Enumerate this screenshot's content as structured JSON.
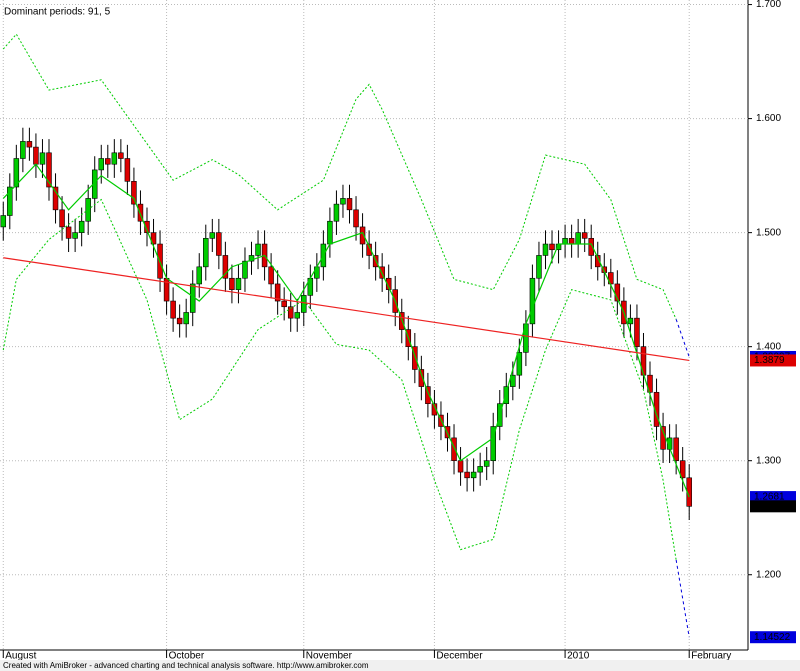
{
  "chart_data": {
    "type": "candlestick",
    "title": "Dominant periods: 91, 5",
    "footer": "Created with AmiBroker - advanced charting and technical analysis software. http://www.amibroker.com",
    "up_color": "#00cc00",
    "down_color": "#dd0000",
    "open": [
      1.505,
      1.515,
      1.54,
      1.565,
      1.58,
      1.575,
      1.56,
      1.57,
      1.54,
      1.52,
      1.505,
      1.495,
      1.5,
      1.51,
      1.53,
      1.555,
      1.565,
      1.56,
      1.57,
      1.565,
      1.545,
      1.525,
      1.51,
      1.5,
      1.49,
      1.46,
      1.44,
      1.425,
      1.42,
      1.43,
      1.455,
      1.47,
      1.495,
      1.5,
      1.48,
      1.46,
      1.45,
      1.46,
      1.475,
      1.48,
      1.49,
      1.47,
      1.455,
      1.44,
      1.435,
      1.425,
      1.43,
      1.445,
      1.46,
      1.47,
      1.49,
      1.51,
      1.525,
      1.53,
      1.52,
      1.505,
      1.49,
      1.48,
      1.47,
      1.46,
      1.45,
      1.43,
      1.415,
      1.4,
      1.38,
      1.365,
      1.35,
      1.34,
      1.33,
      1.32,
      1.3,
      1.29,
      1.285,
      1.29,
      1.295,
      1.3,
      1.33,
      1.35,
      1.365,
      1.375,
      1.395,
      1.42,
      1.46,
      1.48,
      1.49,
      1.485,
      1.49,
      1.495,
      1.49,
      1.5,
      1.495,
      1.48,
      1.47,
      1.465,
      1.455,
      1.44,
      1.42,
      1.425,
      1.4,
      1.375,
      1.36,
      1.33,
      1.31,
      1.32,
      1.3,
      1.285
    ],
    "high": [
      1.527,
      1.552,
      1.577,
      1.592,
      1.592,
      1.587,
      1.582,
      1.582,
      1.552,
      1.532,
      1.517,
      1.512,
      1.522,
      1.542,
      1.567,
      1.577,
      1.577,
      1.582,
      1.582,
      1.577,
      1.557,
      1.537,
      1.522,
      1.512,
      1.502,
      1.472,
      1.452,
      1.437,
      1.442,
      1.467,
      1.482,
      1.507,
      1.512,
      1.512,
      1.492,
      1.472,
      1.472,
      1.487,
      1.492,
      1.502,
      1.502,
      1.482,
      1.467,
      1.452,
      1.447,
      1.442,
      1.457,
      1.472,
      1.482,
      1.502,
      1.522,
      1.537,
      1.542,
      1.542,
      1.532,
      1.517,
      1.502,
      1.492,
      1.482,
      1.472,
      1.462,
      1.442,
      1.427,
      1.412,
      1.392,
      1.377,
      1.362,
      1.352,
      1.342,
      1.332,
      1.312,
      1.302,
      1.302,
      1.307,
      1.312,
      1.342,
      1.362,
      1.377,
      1.387,
      1.407,
      1.432,
      1.472,
      1.492,
      1.502,
      1.502,
      1.502,
      1.507,
      1.507,
      1.512,
      1.512,
      1.507,
      1.492,
      1.482,
      1.477,
      1.467,
      1.452,
      1.437,
      1.437,
      1.412,
      1.387,
      1.372,
      1.342,
      1.332,
      1.332,
      1.312,
      1.297
    ],
    "low": [
      1.493,
      1.503,
      1.528,
      1.553,
      1.563,
      1.548,
      1.548,
      1.528,
      1.508,
      1.493,
      1.483,
      1.483,
      1.488,
      1.498,
      1.518,
      1.543,
      1.548,
      1.548,
      1.553,
      1.533,
      1.513,
      1.498,
      1.488,
      1.478,
      1.448,
      1.428,
      1.413,
      1.408,
      1.408,
      1.418,
      1.443,
      1.458,
      1.483,
      1.468,
      1.448,
      1.438,
      1.438,
      1.448,
      1.463,
      1.468,
      1.458,
      1.443,
      1.428,
      1.423,
      1.413,
      1.413,
      1.418,
      1.433,
      1.448,
      1.458,
      1.478,
      1.498,
      1.513,
      1.508,
      1.493,
      1.478,
      1.468,
      1.458,
      1.448,
      1.438,
      1.418,
      1.403,
      1.388,
      1.368,
      1.353,
      1.338,
      1.328,
      1.318,
      1.308,
      1.288,
      1.278,
      1.273,
      1.273,
      1.278,
      1.283,
      1.288,
      1.318,
      1.338,
      1.353,
      1.363,
      1.383,
      1.408,
      1.448,
      1.468,
      1.473,
      1.473,
      1.478,
      1.478,
      1.478,
      1.483,
      1.468,
      1.458,
      1.453,
      1.443,
      1.428,
      1.408,
      1.408,
      1.388,
      1.363,
      1.348,
      1.318,
      1.298,
      1.298,
      1.288,
      1.273,
      1.248
    ],
    "close": [
      1.515,
      1.54,
      1.565,
      1.58,
      1.575,
      1.56,
      1.57,
      1.54,
      1.52,
      1.505,
      1.495,
      1.5,
      1.51,
      1.53,
      1.555,
      1.565,
      1.56,
      1.57,
      1.565,
      1.545,
      1.525,
      1.51,
      1.5,
      1.49,
      1.46,
      1.44,
      1.425,
      1.42,
      1.43,
      1.455,
      1.47,
      1.495,
      1.5,
      1.48,
      1.46,
      1.45,
      1.46,
      1.475,
      1.48,
      1.49,
      1.47,
      1.455,
      1.44,
      1.435,
      1.425,
      1.43,
      1.445,
      1.46,
      1.47,
      1.49,
      1.51,
      1.525,
      1.53,
      1.52,
      1.505,
      1.49,
      1.48,
      1.47,
      1.46,
      1.45,
      1.43,
      1.415,
      1.4,
      1.38,
      1.365,
      1.35,
      1.34,
      1.33,
      1.32,
      1.3,
      1.29,
      1.285,
      1.29,
      1.295,
      1.3,
      1.33,
      1.35,
      1.365,
      1.375,
      1.395,
      1.42,
      1.46,
      1.48,
      1.49,
      1.485,
      1.49,
      1.495,
      1.49,
      1.5,
      1.495,
      1.48,
      1.47,
      1.465,
      1.455,
      1.44,
      1.42,
      1.425,
      1.4,
      1.375,
      1.36,
      1.33,
      1.31,
      1.32,
      1.3,
      1.285,
      1.26
    ],
    "close_box_color": "#000000",
    "series": [
      {
        "color": "#00cc00",
        "style": "solid",
        "x": [
          0,
          5,
          10,
          15,
          20,
          25,
          30,
          35,
          40,
          45,
          50,
          55,
          60,
          65,
          70,
          75,
          80,
          85,
          90,
          95,
          100,
          105
        ],
        "values": [
          1.53,
          1.56,
          1.52,
          1.55,
          1.53,
          1.46,
          1.44,
          1.47,
          1.48,
          1.44,
          1.49,
          1.5,
          1.44,
          1.36,
          1.3,
          1.32,
          1.42,
          1.49,
          1.49,
          1.43,
          1.34,
          1.2681
        ],
        "box_color": "#0000dd"
      },
      {
        "color": "#00cc00",
        "style": "dotted",
        "x": [
          0,
          2,
          7,
          15,
          26,
          32,
          36,
          42,
          49,
          54,
          56,
          58,
          64,
          69,
          75,
          79,
          83,
          89,
          93,
          97,
          101,
          103
        ],
        "values": [
          1.661,
          1.674,
          1.625,
          1.634,
          1.546,
          1.564,
          1.551,
          1.52,
          1.546,
          1.617,
          1.63,
          1.608,
          1.529,
          1.459,
          1.45,
          1.494,
          1.568,
          1.56,
          1.529,
          1.459,
          1.45,
          1.424
        ]
      },
      {
        "color": "#00cc00",
        "style": "dotted",
        "x": [
          0,
          2,
          7,
          15,
          22,
          27,
          32,
          39,
          46,
          51,
          56,
          61,
          66,
          70,
          75,
          79,
          83,
          87,
          93,
          98,
          101,
          103
        ],
        "values": [
          1.397,
          1.459,
          1.494,
          1.529,
          1.441,
          1.336,
          1.354,
          1.415,
          1.441,
          1.402,
          1.397,
          1.371,
          1.283,
          1.222,
          1.231,
          1.327,
          1.397,
          1.45,
          1.441,
          1.362,
          1.283,
          1.213
        ]
      },
      {
        "color": "#0000dd",
        "style": "dashed",
        "x": [
          103,
          105
        ],
        "values": [
          1.424,
          1.39097
        ],
        "box_color": "#0000dd"
      },
      {
        "color": "#0000dd",
        "style": "dashed",
        "x": [
          103,
          105
        ],
        "values": [
          1.213,
          1.14522
        ],
        "box_color": "#0000dd"
      },
      {
        "color": "#ee2222",
        "style": "solid",
        "x": [
          0,
          105
        ],
        "values": [
          1.478,
          1.3879
        ],
        "box_color": "#dd0000"
      }
    ],
    "xlim": [
      -0.5,
      114
    ],
    "xticks": [
      {
        "value": 0,
        "label": "August"
      },
      {
        "value": 25,
        "label": "October"
      },
      {
        "value": 46,
        "label": "November"
      },
      {
        "value": 66,
        "label": "December"
      },
      {
        "value": 86,
        "label": "2010"
      },
      {
        "value": 105,
        "label": "February"
      }
    ],
    "ylim": [
      1.134,
      1.704
    ],
    "yticks": [
      {
        "value": 1.2,
        "label": "1.200"
      },
      {
        "value": 1.3,
        "label": "1.300"
      },
      {
        "value": 1.4,
        "label": "1.400"
      },
      {
        "value": 1.5,
        "label": "1.500"
      },
      {
        "value": 1.6,
        "label": "1.600"
      },
      {
        "value": 1.7,
        "label": "1.700"
      }
    ],
    "grid": true
  }
}
